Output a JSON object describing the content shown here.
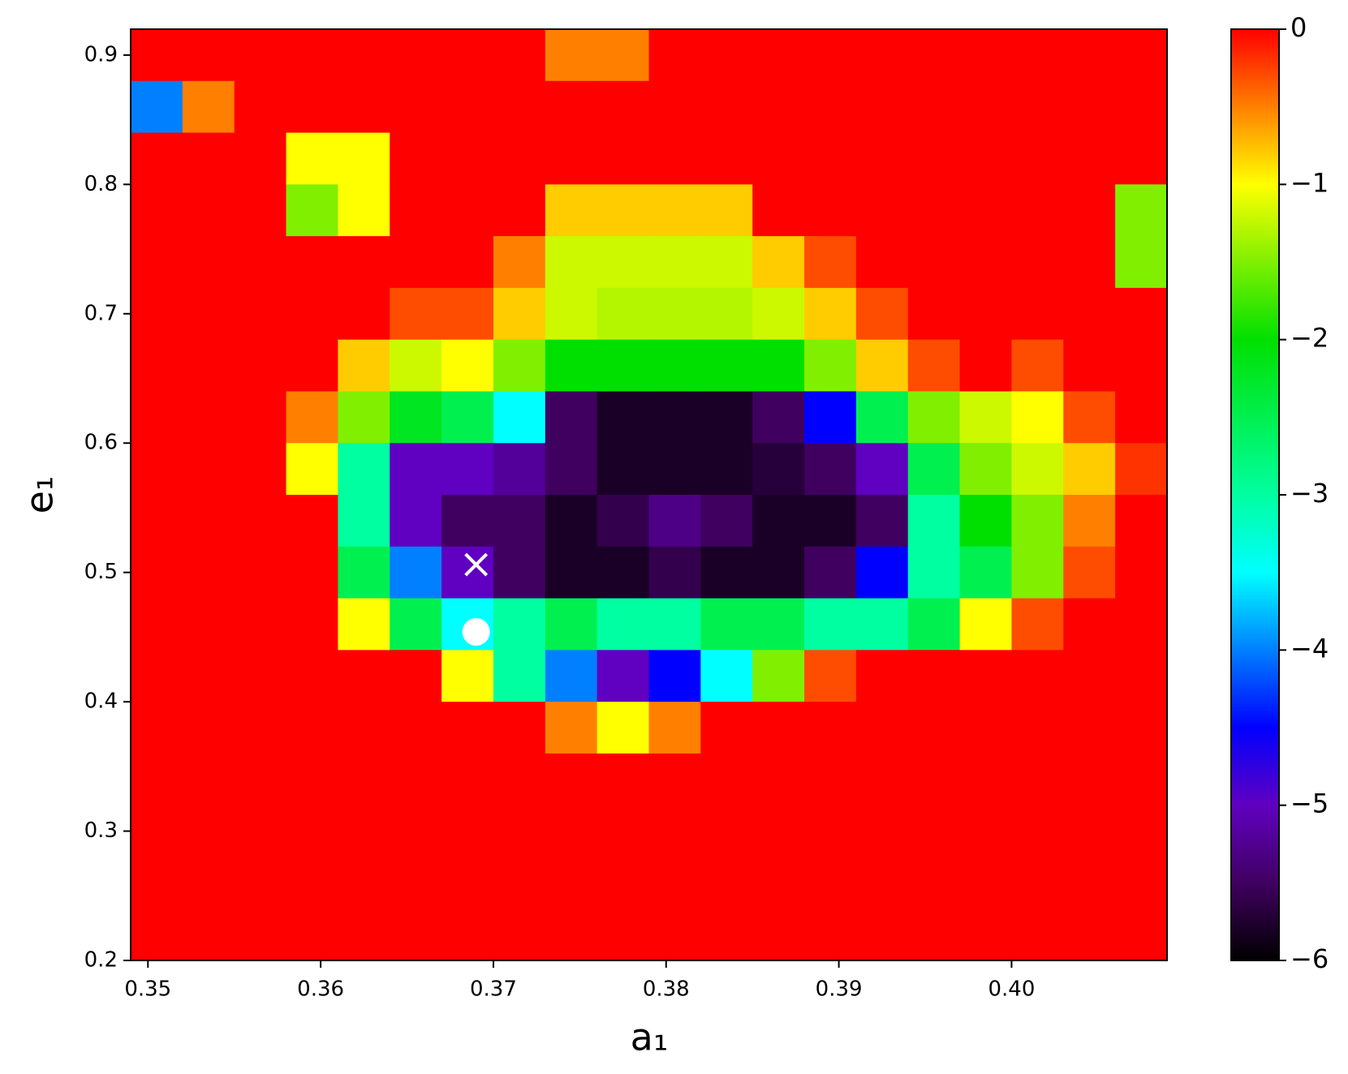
{
  "chart_data": {
    "type": "heatmap",
    "xlabel": "a₁",
    "ylabel": "e₁",
    "xlim": [
      0.349,
      0.409
    ],
    "ylim": [
      0.2,
      0.92
    ],
    "xticks": [
      0.35,
      0.36,
      0.37,
      0.38,
      0.39,
      {
        "value": 0.4,
        "label": "0.40"
      }
    ],
    "yticks": [
      0.2,
      0.3,
      0.4,
      0.5,
      0.6,
      0.7,
      0.8,
      0.9
    ],
    "x": [
      0.3505,
      0.3535,
      0.3565,
      0.3595,
      0.3625,
      0.3655,
      0.3685,
      0.3715,
      0.3745,
      0.3775,
      0.3805,
      0.3835,
      0.3865,
      0.3895,
      0.3925,
      0.3955,
      0.3985,
      0.4015,
      0.4045,
      0.4075
    ],
    "y": [
      0.9,
      0.86,
      0.82,
      0.78,
      0.74,
      0.7,
      0.66,
      0.62,
      0.58,
      0.54,
      0.5,
      0.46,
      0.42,
      0.38,
      0.34,
      0.3,
      0.26,
      0.22
    ],
    "z": [
      [
        0,
        0,
        0,
        0,
        0,
        0,
        0,
        0,
        -0.5,
        -0.5,
        0,
        0,
        0,
        0,
        0,
        0,
        0,
        0,
        0,
        0
      ],
      [
        -4,
        -0.5,
        0,
        0,
        0,
        0,
        0,
        0,
        0,
        0,
        0,
        0,
        0,
        0,
        0,
        0,
        0,
        0,
        0,
        0
      ],
      [
        0,
        0,
        0,
        -1,
        -1,
        0,
        0,
        0,
        0,
        0,
        0,
        0,
        0,
        0,
        0,
        0,
        0,
        0,
        0,
        0
      ],
      [
        0,
        0,
        0,
        -1.5,
        -1,
        0,
        0,
        0,
        -0.8,
        -0.8,
        -0.8,
        -0.8,
        0,
        0,
        0,
        0,
        0,
        0,
        0,
        -1.5
      ],
      [
        0,
        0,
        0,
        0,
        0,
        0,
        0,
        -0.5,
        -1.2,
        -1.2,
        -1.2,
        -1.2,
        -0.8,
        -0.3,
        0,
        0,
        0,
        0,
        0,
        -1.5
      ],
      [
        0,
        0,
        0,
        0,
        0,
        -0.3,
        -0.3,
        -0.8,
        -1.2,
        -1.3,
        -1.3,
        -1.3,
        -1.2,
        -0.8,
        -0.3,
        0,
        0,
        0,
        0,
        0
      ],
      [
        0,
        0,
        0,
        0,
        -0.8,
        -1.2,
        -1,
        -1.5,
        -2,
        -2,
        -2,
        -2,
        -2,
        -1.5,
        -0.8,
        -0.3,
        0,
        -0.3,
        0,
        0
      ],
      [
        0,
        0,
        0,
        -0.5,
        -1.5,
        -2.2,
        -2.5,
        -3.5,
        -5.5,
        -5.8,
        -5.8,
        -5.8,
        -5.5,
        -4.5,
        -2.5,
        -1.5,
        -1.2,
        -1,
        -0.3,
        0
      ],
      [
        0,
        0,
        0,
        -1,
        -3,
        -5,
        -5,
        -5.2,
        -5.5,
        -5.8,
        -5.8,
        -5.8,
        -5.7,
        -5.5,
        -5,
        -2.5,
        -1.5,
        -1.2,
        -0.8,
        -0.2
      ],
      [
        0,
        0,
        0,
        0,
        -3,
        -5,
        -5.5,
        -5.5,
        -5.8,
        -5.6,
        -5.3,
        -5.5,
        -5.8,
        -5.8,
        -5.5,
        -3,
        -2,
        -1.5,
        -0.5,
        0
      ],
      [
        0,
        0,
        0,
        0,
        -2.5,
        -4,
        -5,
        -5.5,
        -5.8,
        -5.8,
        -5.6,
        -5.8,
        -5.8,
        -5.5,
        -4.5,
        -3,
        -2.5,
        -1.5,
        -0.3,
        0
      ],
      [
        0,
        0,
        0,
        0,
        -1,
        -2.5,
        -3.5,
        -3,
        -2.5,
        -3,
        -3,
        -2.5,
        -2.5,
        -3,
        -3,
        -2.5,
        -1,
        -0.3,
        0,
        0
      ],
      [
        0,
        0,
        0,
        0,
        0,
        0,
        -1,
        -3,
        -4,
        -5,
        -4.5,
        -3.5,
        -1.5,
        -0.3,
        0,
        0,
        0,
        0,
        0,
        0
      ],
      [
        0,
        0,
        0,
        0,
        0,
        0,
        0,
        0,
        -0.5,
        -1,
        -0.5,
        0,
        0,
        0,
        0,
        0,
        0,
        0,
        0,
        0
      ],
      [
        0,
        0,
        0,
        0,
        0,
        0,
        0,
        0,
        0,
        0,
        0,
        0,
        0,
        0,
        0,
        0,
        0,
        0,
        0,
        0
      ],
      [
        0,
        0,
        0,
        0,
        0,
        0,
        0,
        0,
        0,
        0,
        0,
        0,
        0,
        0,
        0,
        0,
        0,
        0,
        0,
        0
      ],
      [
        0,
        0,
        0,
        0,
        0,
        0,
        0,
        0,
        0,
        0,
        0,
        0,
        0,
        0,
        0,
        0,
        0,
        0,
        0,
        0
      ],
      [
        0,
        0,
        0,
        0,
        0,
        0,
        0,
        0,
        0,
        0,
        0,
        0,
        0,
        0,
        0,
        0,
        0,
        0,
        0,
        0
      ]
    ],
    "colorscale": [
      [
        0,
        "#ff0000"
      ],
      [
        -0.5,
        "#ff8000"
      ],
      [
        -1,
        "#ffff00"
      ],
      [
        -2,
        "#00e000"
      ],
      [
        -3,
        "#00ffa0"
      ],
      [
        -3.5,
        "#00ffff"
      ],
      [
        -4,
        "#0080ff"
      ],
      [
        -4.5,
        "#0000ff"
      ],
      [
        -5,
        "#6000c0"
      ],
      [
        -5.5,
        "#400060"
      ],
      [
        -6,
        "#000000"
      ]
    ],
    "clim": [
      -6,
      0
    ],
    "cticks": [
      0,
      {
        "value": -1,
        "label": "−1"
      },
      {
        "value": -2,
        "label": "−2"
      },
      {
        "value": -3,
        "label": "−3"
      },
      {
        "value": -4,
        "label": "−4"
      },
      {
        "value": -5,
        "label": "−5"
      },
      {
        "value": -6,
        "label": "−6"
      }
    ],
    "markers": [
      {
        "x": 0.369,
        "y": 0.506,
        "marker": "x",
        "color": "#ffffff"
      },
      {
        "x": 0.369,
        "y": 0.454,
        "marker": "o",
        "color": "#ffffff"
      }
    ]
  }
}
